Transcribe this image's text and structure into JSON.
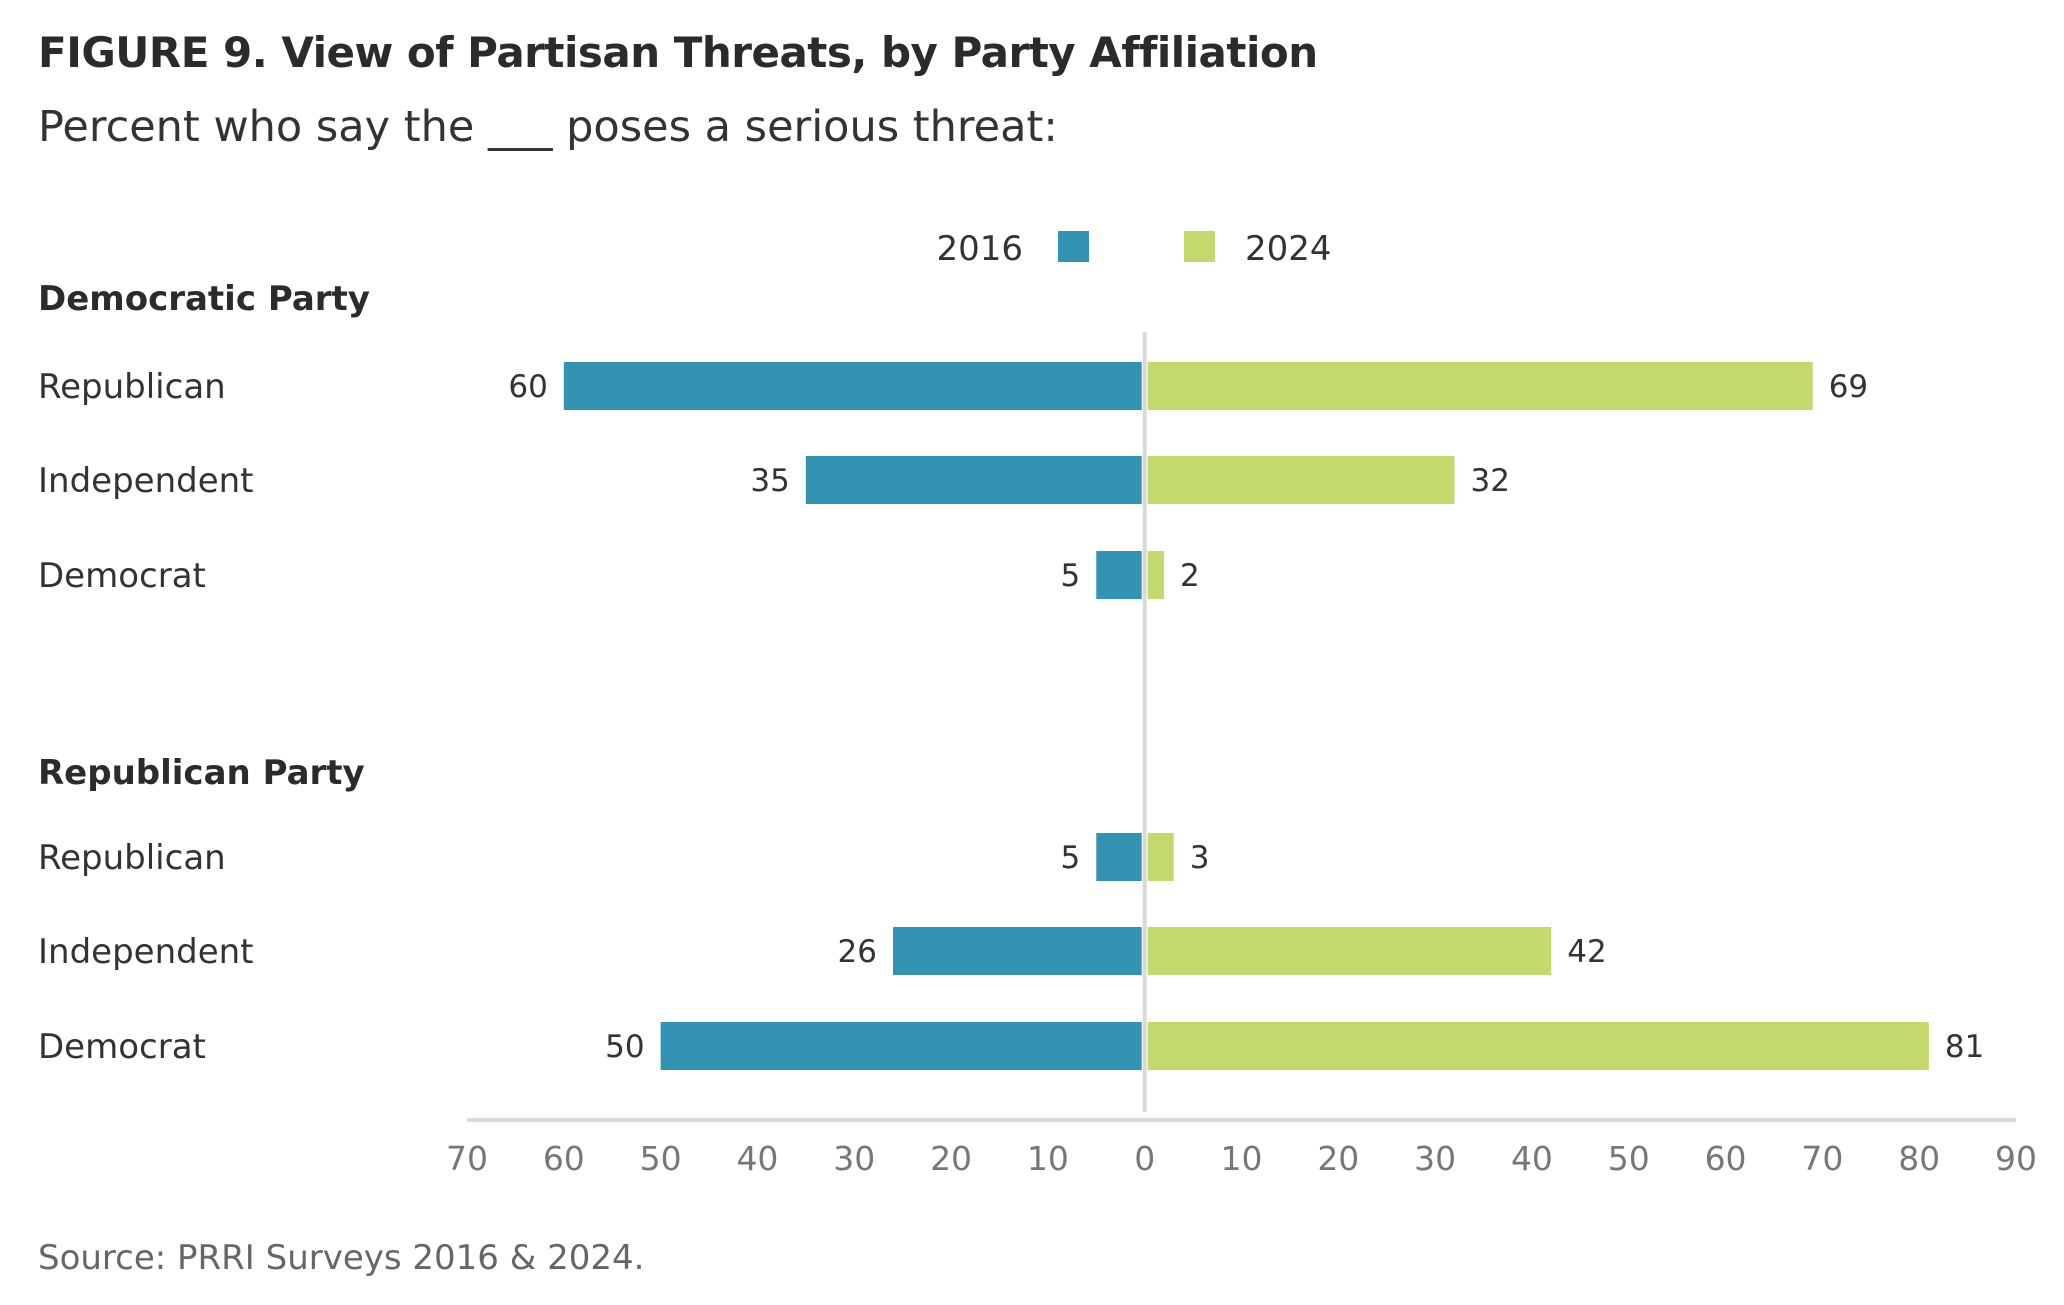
{
  "header": {
    "title": "FIGURE 9.  View of Partisan Threats, by Party Affiliation",
    "subtitle": "Percent who say the ___ poses a serious threat:"
  },
  "footer": {
    "source": "Source: PRRI Surveys 2016 & 2024."
  },
  "colors": {
    "series_2016": "#3293b3",
    "series_2024": "#c2d96b",
    "axis": "#d9d9d9"
  },
  "chart_data": {
    "type": "bar",
    "orientation": "horizontal-diverging",
    "legend_placement": "top-center",
    "grid": false,
    "xlim": [
      -70,
      90
    ],
    "ticks": [
      -70,
      -60,
      -50,
      -40,
      -30,
      -20,
      -10,
      0,
      10,
      20,
      30,
      40,
      50,
      60,
      70,
      80,
      90
    ],
    "tick_labels": [
      "70",
      "60",
      "50",
      "40",
      "30",
      "20",
      "10",
      "0",
      "10",
      "20",
      "30",
      "40",
      "50",
      "60",
      "70",
      "80",
      "90"
    ],
    "legend": [
      {
        "name": "2016",
        "color": "#3293b3",
        "side": "left"
      },
      {
        "name": "2024",
        "color": "#c2d96b",
        "side": "right"
      }
    ],
    "groups": [
      {
        "name": "Democratic Party",
        "categories": [
          "Republican",
          "Independent",
          "Democrat"
        ],
        "series": [
          {
            "name": "2016",
            "values": [
              60,
              35,
              5
            ]
          },
          {
            "name": "2024",
            "values": [
              69,
              32,
              2
            ]
          }
        ]
      },
      {
        "name": "Republican Party",
        "categories": [
          "Republican",
          "Independent",
          "Democrat"
        ],
        "series": [
          {
            "name": "2016",
            "values": [
              5,
              26,
              50
            ]
          },
          {
            "name": "2024",
            "values": [
              3,
              42,
              81
            ]
          }
        ]
      }
    ]
  }
}
